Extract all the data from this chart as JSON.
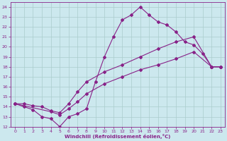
{
  "xlabel": "Windchill (Refroidissement éolien,°C)",
  "bg_color": "#cce8ee",
  "grid_color": "#aacccc",
  "line_color": "#882288",
  "xlim": [
    -0.5,
    23.5
  ],
  "ylim": [
    12,
    24.5
  ],
  "xticks": [
    0,
    1,
    2,
    3,
    4,
    5,
    6,
    7,
    8,
    9,
    10,
    11,
    12,
    13,
    14,
    15,
    16,
    17,
    18,
    19,
    20,
    21,
    22,
    23
  ],
  "yticks": [
    12,
    13,
    14,
    15,
    16,
    17,
    18,
    19,
    20,
    21,
    22,
    23,
    24
  ],
  "line1_x": [
    0,
    1,
    2,
    3,
    4,
    5,
    6,
    7,
    8,
    9,
    10,
    11,
    12,
    13,
    14,
    15,
    16,
    17,
    18,
    19,
    20,
    21,
    22,
    23
  ],
  "line1_y": [
    14.3,
    14.0,
    13.7,
    13.0,
    12.8,
    12.0,
    13.0,
    13.3,
    13.8,
    16.5,
    19.0,
    21.0,
    22.7,
    23.2,
    24.0,
    23.2,
    22.5,
    22.2,
    21.5,
    20.5,
    20.2,
    19.3,
    18.0,
    18.0
  ],
  "line2_x": [
    0,
    1,
    2,
    3,
    4,
    5,
    6,
    7,
    8,
    10,
    12,
    14,
    16,
    18,
    20,
    22,
    23
  ],
  "line2_y": [
    14.3,
    14.3,
    14.1,
    14.0,
    13.6,
    13.4,
    14.3,
    15.5,
    16.5,
    17.5,
    18.2,
    19.0,
    19.8,
    20.5,
    21.0,
    18.0,
    18.0
  ],
  "line3_x": [
    0,
    4,
    5,
    6,
    7,
    8,
    10,
    12,
    14,
    16,
    18,
    20,
    22,
    23
  ],
  "line3_y": [
    14.3,
    13.5,
    13.2,
    13.8,
    14.5,
    15.3,
    16.3,
    17.0,
    17.7,
    18.2,
    18.8,
    19.5,
    18.0,
    18.0
  ]
}
